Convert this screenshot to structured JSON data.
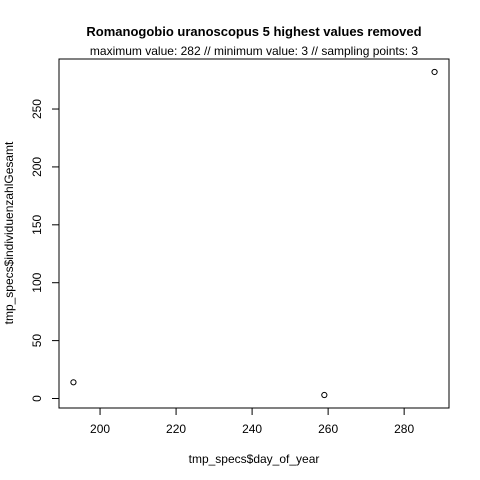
{
  "chart_data": {
    "type": "scatter",
    "title": "Romanogobio uranoscopus  5 highest values removed",
    "subtitle": "maximum value: 282  //  minimum value: 3  // sampling points: 3",
    "xlabel": "tmp_specs$day_of_year",
    "ylabel": "tmp_specs$individuenzahlGesamt",
    "xlim": [
      189.2,
      291.8
    ],
    "ylim": [
      -8.2,
      293.2
    ],
    "xticks": [
      200,
      220,
      240,
      260,
      280
    ],
    "yticks": [
      0,
      50,
      100,
      150,
      200,
      250
    ],
    "points": [
      {
        "x": 193,
        "y": 14
      },
      {
        "x": 259,
        "y": 3
      },
      {
        "x": 288,
        "y": 282
      }
    ],
    "grid": false,
    "marker": "open-circle",
    "colors": {
      "axis": "#000000",
      "point": "#000000",
      "background": "#ffffff"
    }
  }
}
